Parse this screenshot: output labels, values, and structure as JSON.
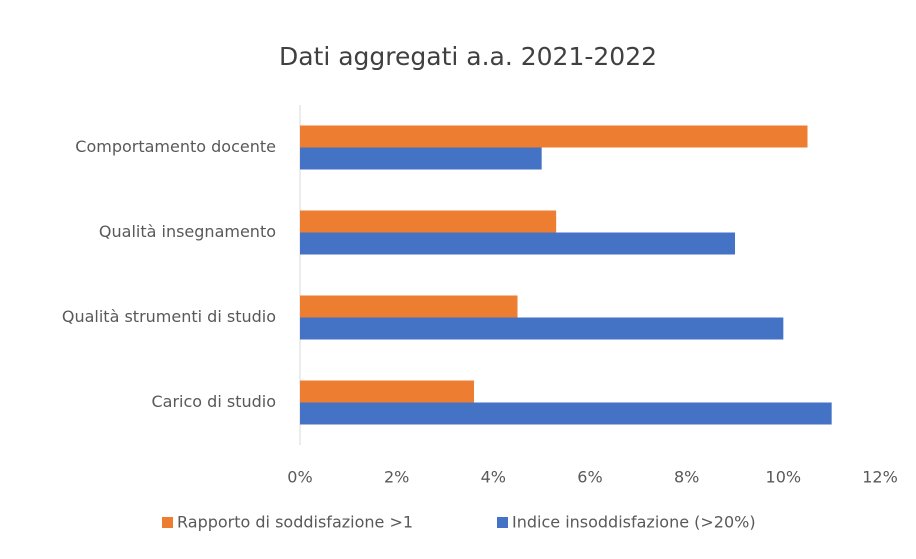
{
  "chart_data": {
    "type": "bar",
    "orientation": "horizontal",
    "title": "Dati aggregati a.a. 2021-2022",
    "categories": [
      "Comportamento docente",
      "Qualità insegnamento",
      "Qualità strumenti di studio",
      "Carico di studio"
    ],
    "series": [
      {
        "name": "Rapporto di soddisfazione >1",
        "color": "#ED7D31",
        "values": [
          10.5,
          5.3,
          4.5,
          3.6
        ]
      },
      {
        "name": "Indice insoddisfazione (>20%)",
        "color": "#4472C4",
        "values": [
          5.0,
          9.0,
          10.0,
          11.0
        ]
      }
    ],
    "xlim": [
      0,
      12
    ],
    "xticks": [
      {
        "value": 0,
        "label": "0%"
      },
      {
        "value": 2,
        "label": "2%"
      },
      {
        "value": 4,
        "label": "4%"
      },
      {
        "value": 6,
        "label": "6%"
      },
      {
        "value": 8,
        "label": "8%"
      },
      {
        "value": 10,
        "label": "10%"
      },
      {
        "value": 12,
        "label": "12%"
      }
    ],
    "grid": false,
    "legend": "bottom"
  }
}
